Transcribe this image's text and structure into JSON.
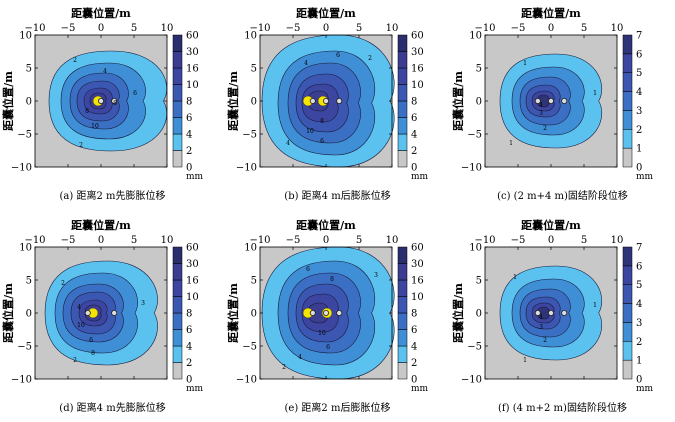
{
  "figure": {
    "axis_label_top": "距囊位置/m",
    "axis_label_left": "距囊位置/m",
    "unit": "mm"
  },
  "chart_data": [
    {
      "type": "contour",
      "id": "a",
      "caption": "(a) 距离2 m先膨胀位移",
      "xlabel": "距囊位置/m",
      "ylabel": "距囊位置/m",
      "xlim": [
        -10,
        10
      ],
      "ylim": [
        -10,
        10
      ],
      "xticks": [
        -10,
        -5,
        0,
        5,
        10
      ],
      "yticks": [
        10,
        5,
        0,
        -5,
        -10
      ],
      "colorbar_levels": [
        0,
        2,
        4,
        6,
        8,
        10,
        16,
        30,
        60
      ],
      "colorbar_unit": "mm",
      "contour_labels": [
        "2",
        "4",
        "6",
        "8",
        "10",
        "2",
        "8"
      ],
      "sources": [
        {
          "x": 0,
          "y": 0
        },
        {
          "x": 2,
          "y": 0
        }
      ]
    },
    {
      "type": "contour",
      "id": "b",
      "caption": "(b) 距离4 m后膨胀位移",
      "xlabel": "距囊位置/m",
      "ylabel": "距囊位置/m",
      "xlim": [
        -10,
        10
      ],
      "ylim": [
        -10,
        10
      ],
      "xticks": [
        -10,
        -5,
        0,
        5,
        10
      ],
      "yticks": [
        10,
        5,
        0,
        -5,
        -10
      ],
      "colorbar_levels": [
        0,
        2,
        4,
        6,
        8,
        10,
        16,
        30,
        60
      ],
      "colorbar_unit": "mm",
      "contour_labels": [
        "4",
        "6",
        "8",
        "10",
        "6",
        "4",
        "2"
      ],
      "sources": [
        {
          "x": -2,
          "y": 0
        },
        {
          "x": 0,
          "y": 0
        },
        {
          "x": 2,
          "y": 0
        }
      ]
    },
    {
      "type": "contour",
      "id": "c",
      "caption": "(c) (2 m+4 m)固结阶段位移",
      "xlabel": "距囊位置/m",
      "ylabel": "距囊位置/m",
      "xlim": [
        -10,
        10
      ],
      "ylim": [
        -10,
        10
      ],
      "xticks": [
        -10,
        -5,
        0,
        5,
        10
      ],
      "yticks": [
        10,
        5,
        0,
        -5,
        -10
      ],
      "colorbar_levels": [
        0,
        1,
        2,
        3,
        4,
        5,
        6,
        7
      ],
      "colorbar_unit": "mm",
      "contour_labels": [
        "1",
        "2",
        "3",
        "4",
        "1",
        "1"
      ],
      "sources": [
        {
          "x": -2,
          "y": 0
        },
        {
          "x": 0,
          "y": 0
        },
        {
          "x": 2,
          "y": 0
        }
      ]
    },
    {
      "type": "contour",
      "id": "d",
      "caption": "(d) 距离4 m先膨胀位移",
      "xlabel": "距囊位置/m",
      "ylabel": "距囊位置/m",
      "xlim": [
        -10,
        10
      ],
      "ylim": [
        -10,
        10
      ],
      "xticks": [
        -10,
        -5,
        0,
        5,
        10
      ],
      "yticks": [
        10,
        5,
        0,
        -5,
        -10
      ],
      "colorbar_levels": [
        0,
        2,
        4,
        6,
        8,
        10,
        16,
        30,
        60
      ],
      "colorbar_unit": "mm",
      "contour_labels": [
        "2",
        "4",
        "10",
        "6",
        "8",
        "2",
        "3"
      ],
      "sources": [
        {
          "x": -2,
          "y": 0
        },
        {
          "x": 2,
          "y": 0
        }
      ]
    },
    {
      "type": "contour",
      "id": "e",
      "caption": "(e) 距离2 m后膨胀位移",
      "xlabel": "距囊位置/m",
      "ylabel": "距囊位置/m",
      "xlim": [
        -10,
        10
      ],
      "ylim": [
        -10,
        10
      ],
      "xticks": [
        -10,
        -5,
        0,
        5,
        10
      ],
      "yticks": [
        10,
        5,
        0,
        -5,
        -10
      ],
      "colorbar_levels": [
        0,
        2,
        4,
        6,
        8,
        10,
        16,
        30,
        60
      ],
      "colorbar_unit": "mm",
      "contour_labels": [
        "6",
        "8",
        "10",
        "6",
        "4",
        "2",
        "3"
      ],
      "sources": [
        {
          "x": -2,
          "y": 0
        },
        {
          "x": 0,
          "y": 0
        },
        {
          "x": 2,
          "y": 0
        }
      ]
    },
    {
      "type": "contour",
      "id": "f",
      "caption": "(f) (4 m+2 m)固结阶段位移",
      "xlabel": "距囊位置/m",
      "ylabel": "距囊位置/m",
      "xlim": [
        -10,
        10
      ],
      "ylim": [
        -10,
        10
      ],
      "xticks": [
        -10,
        -5,
        0,
        5,
        10
      ],
      "yticks": [
        10,
        5,
        0,
        -5,
        -10
      ],
      "colorbar_levels": [
        0,
        1,
        2,
        3,
        4,
        5,
        6,
        7
      ],
      "colorbar_unit": "mm",
      "contour_labels": [
        "1",
        "2",
        "3",
        "4",
        "1",
        "1"
      ],
      "sources": [
        {
          "x": -2,
          "y": 0
        },
        {
          "x": 0,
          "y": 0
        },
        {
          "x": 2,
          "y": 0
        }
      ]
    }
  ]
}
